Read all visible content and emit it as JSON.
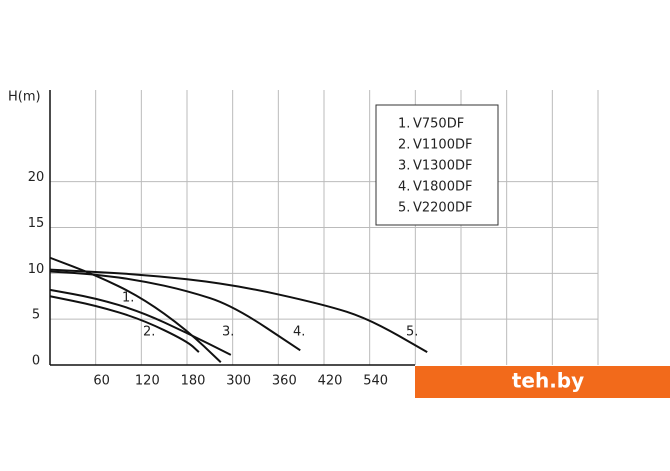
{
  "chart_data": {
    "type": "line",
    "y_label": "H(m)",
    "xlim": [
      0,
      12
    ],
    "ylim": [
      0,
      30
    ],
    "xticks": [
      {
        "value": 1,
        "label": "60"
      },
      {
        "value": 2,
        "label": "120"
      },
      {
        "value": 3,
        "label": "180"
      },
      {
        "value": 4,
        "label": "300"
      },
      {
        "value": 5,
        "label": "360"
      },
      {
        "value": 6,
        "label": "420"
      },
      {
        "value": 7,
        "label": "540"
      }
    ],
    "yticks": [
      0,
      5,
      10,
      15,
      20
    ],
    "grid": true,
    "series": [
      {
        "label": "1.",
        "name": "V750DF",
        "color": "#111",
        "x": [
          0,
          1,
          2,
          3,
          3.74
        ],
        "values": [
          11.7,
          9.8,
          7.4,
          3.8,
          0.3
        ]
      },
      {
        "label": "2.",
        "name": "V1100DF",
        "color": "#111",
        "x": [
          0,
          1,
          2,
          3,
          3.26
        ],
        "values": [
          7.5,
          6.5,
          5.0,
          2.6,
          1.4
        ]
      },
      {
        "label": "3.",
        "name": "V1300DF",
        "color": "#111",
        "x": [
          0,
          1,
          2,
          3,
          3.96
        ],
        "values": [
          8.2,
          7.3,
          5.8,
          3.5,
          1.1
        ]
      },
      {
        "label": "4.",
        "name": "V1800DF",
        "color": "#111",
        "x": [
          0,
          1,
          2,
          3,
          4,
          5.48
        ],
        "values": [
          10.2,
          9.9,
          9.2,
          8.1,
          6.5,
          1.6
        ]
      },
      {
        "label": "5.",
        "name": "V2200DF",
        "color": "#111",
        "x": [
          0,
          2,
          4,
          6,
          7,
          8.26
        ],
        "values": [
          10.4,
          9.9,
          8.8,
          6.6,
          5.0,
          1.4
        ]
      }
    ],
    "watermark": "teh.by"
  }
}
